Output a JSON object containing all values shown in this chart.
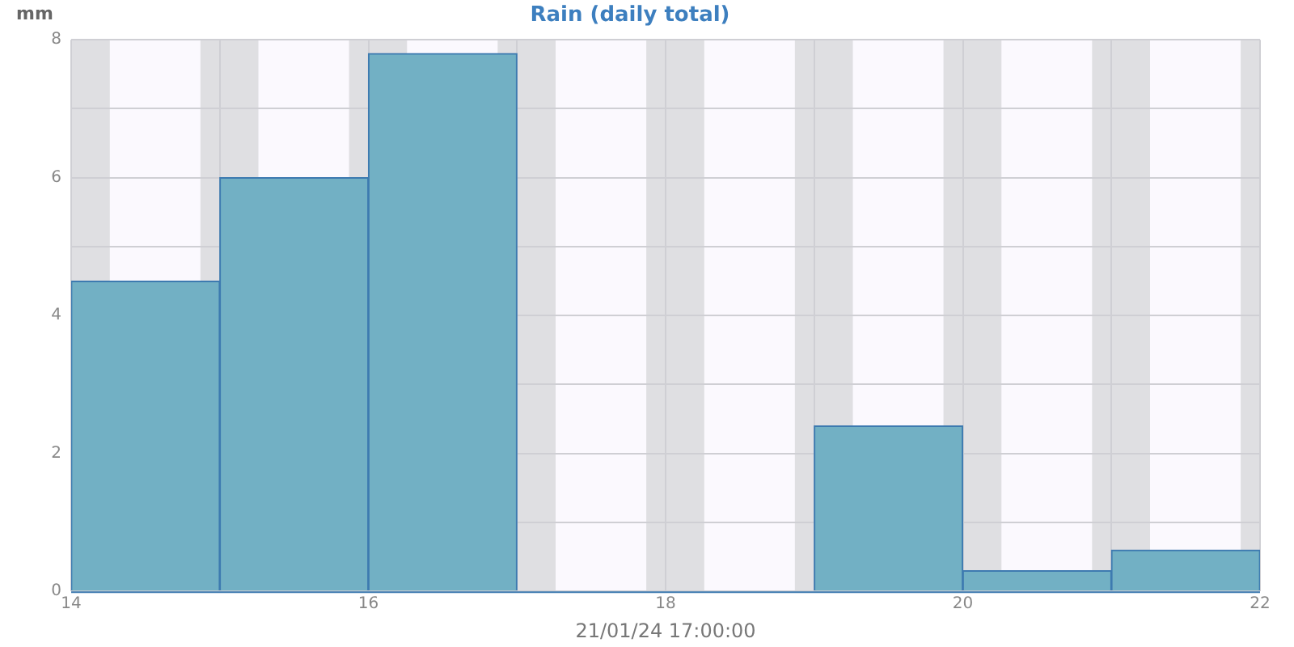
{
  "chart_data": {
    "type": "histogram",
    "title": "Rain (daily total)",
    "xlabel": "21/01/24 17:00:00",
    "ylabel": "mm",
    "bins": [
      14,
      15,
      16,
      17,
      18,
      19,
      20,
      21,
      22
    ],
    "values": [
      4.5,
      6.0,
      7.8,
      0,
      0,
      2.4,
      0.3,
      0.6
    ],
    "color": "#72b0c4",
    "xlim": [
      14,
      22
    ],
    "xticks": [
      14,
      {
        "value": 15,
        "label": null
      },
      16,
      {
        "value": 17,
        "label": null
      },
      18,
      {
        "value": 19,
        "label": null
      },
      20,
      {
        "value": 21,
        "label": null
      },
      22
    ],
    "ylim": [
      0,
      8
    ],
    "yticks": [
      0,
      {
        "value": 1,
        "label": null
      },
      2,
      {
        "value": 3,
        "label": null
      },
      4,
      {
        "value": 5,
        "label": null
      },
      6,
      {
        "value": 7,
        "label": null
      },
      8
    ],
    "grid": true,
    "legend": false,
    "bands": [
      {
        "axis": "x",
        "from": 14,
        "to": 14.26,
        "color": "#dfdfe2"
      },
      {
        "axis": "x",
        "from": 14.87,
        "to": 15.26,
        "color": "#dfdfe2"
      },
      {
        "axis": "x",
        "from": 15.87,
        "to": 16.26,
        "color": "#dfdfe2"
      },
      {
        "axis": "x",
        "from": 16.87,
        "to": 17.26,
        "color": "#dfdfe2"
      },
      {
        "axis": "x",
        "from": 17.87,
        "to": 18.26,
        "color": "#dfdfe2"
      },
      {
        "axis": "x",
        "from": 18.87,
        "to": 19.26,
        "color": "#dfdfe2"
      },
      {
        "axis": "x",
        "from": 19.87,
        "to": 20.26,
        "color": "#dfdfe2"
      },
      {
        "axis": "x",
        "from": 20.87,
        "to": 21.26,
        "color": "#dfdfe2"
      },
      {
        "axis": "x",
        "from": 21.87,
        "to": 22,
        "color": "#dfdfe2"
      }
    ]
  }
}
